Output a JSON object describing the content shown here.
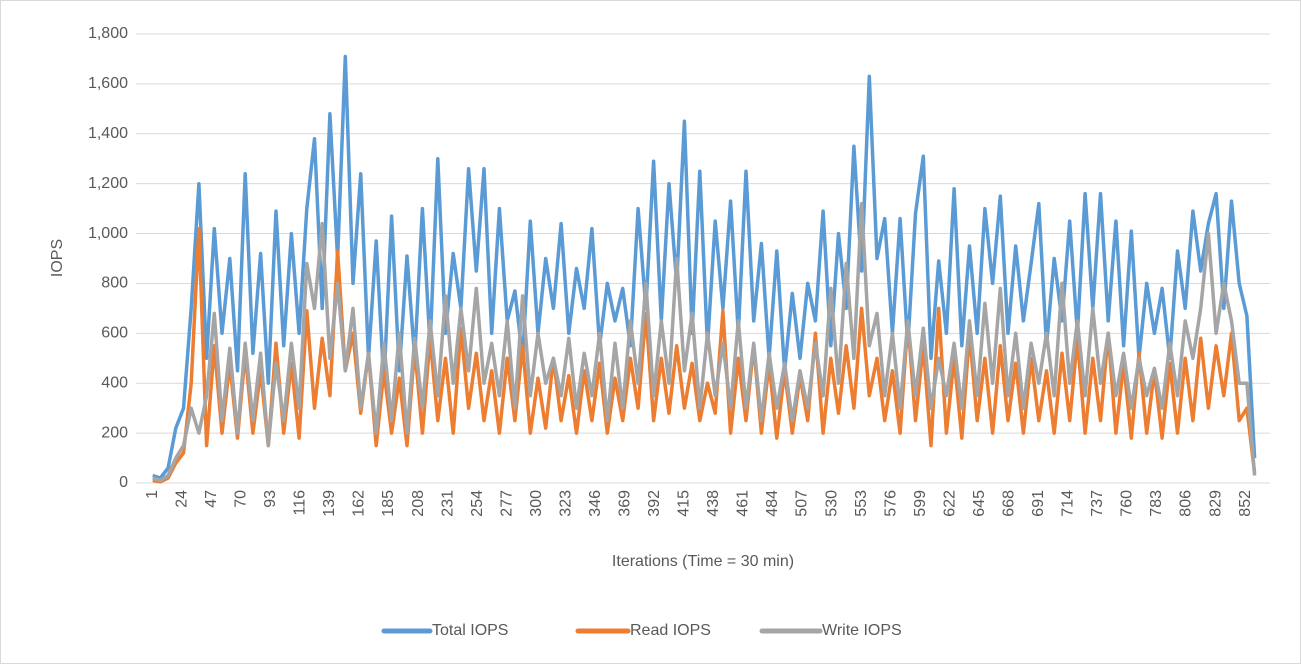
{
  "chart_data": {
    "type": "line",
    "xlabel": "Iterations (Time = 30 min)",
    "ylabel": "IOPS",
    "x": [
      1,
      7,
      13,
      19,
      25,
      31,
      37,
      43,
      49,
      55,
      61,
      67,
      73,
      79,
      85,
      91,
      97,
      103,
      109,
      115,
      121,
      127,
      133,
      139,
      145,
      151,
      157,
      163,
      169,
      175,
      181,
      187,
      193,
      199,
      205,
      211,
      217,
      223,
      229,
      235,
      241,
      247,
      253,
      259,
      265,
      271,
      277,
      283,
      289,
      295,
      301,
      307,
      313,
      319,
      325,
      331,
      337,
      343,
      349,
      355,
      361,
      367,
      373,
      379,
      385,
      391,
      397,
      403,
      409,
      415,
      421,
      427,
      433,
      439,
      445,
      451,
      457,
      463,
      469,
      475,
      481,
      487,
      493,
      499,
      505,
      511,
      517,
      523,
      529,
      535,
      541,
      547,
      553,
      559,
      565,
      571,
      577,
      583,
      589,
      595,
      601,
      607,
      613,
      619,
      625,
      631,
      637,
      643,
      649,
      655,
      661,
      667,
      673,
      679,
      685,
      691,
      697,
      703,
      709,
      715,
      721,
      727,
      733,
      739,
      745,
      751,
      757,
      763,
      769,
      775,
      781,
      787,
      793,
      799,
      805,
      811,
      817,
      823,
      829,
      835,
      841,
      847,
      853,
      859
    ],
    "series": [
      {
        "name": "Total IOPS",
        "color": "#5b9bd5",
        "values": [
          30,
          20,
          60,
          220,
          300,
          700,
          1200,
          500,
          1020,
          600,
          900,
          450,
          1240,
          520,
          920,
          400,
          1090,
          550,
          1000,
          600,
          1100,
          1380,
          700,
          1480,
          900,
          1710,
          800,
          1240,
          500,
          970,
          400,
          1070,
          450,
          910,
          500,
          1100,
          550,
          1300,
          600,
          920,
          700,
          1260,
          850,
          1260,
          600,
          1100,
          650,
          770,
          500,
          1050,
          600,
          900,
          700,
          1040,
          600,
          860,
          700,
          1020,
          550,
          800,
          650,
          780,
          550,
          1100,
          700,
          1290,
          650,
          1200,
          800,
          1450,
          600,
          1250,
          550,
          1050,
          700,
          1130,
          600,
          1250,
          650,
          960,
          500,
          930,
          450,
          760,
          500,
          800,
          650,
          1090,
          550,
          1000,
          700,
          1350,
          850,
          1630,
          900,
          1060,
          600,
          1060,
          550,
          1080,
          1310,
          500,
          890,
          600,
          1180,
          550,
          950,
          600,
          1100,
          800,
          1150,
          600,
          950,
          650,
          880,
          1120,
          550,
          900,
          650,
          1050,
          600,
          1160,
          700,
          1160,
          650,
          1050,
          550,
          1010,
          500,
          800,
          600,
          780,
          500,
          930,
          700,
          1090,
          850,
          1040,
          1160,
          700,
          1130,
          800,
          670,
          100
        ]
      },
      {
        "name": "Read IOPS",
        "color": "#ed7d31",
        "values": [
          10,
          5,
          20,
          80,
          120,
          400,
          1020,
          150,
          550,
          200,
          480,
          180,
          520,
          200,
          450,
          150,
          560,
          200,
          480,
          180,
          690,
          300,
          580,
          350,
          930,
          450,
          600,
          280,
          520,
          150,
          450,
          200,
          420,
          150,
          540,
          200,
          580,
          250,
          500,
          200,
          620,
          300,
          520,
          250,
          450,
          200,
          500,
          250,
          550,
          200,
          420,
          220,
          500,
          250,
          430,
          200,
          450,
          250,
          480,
          200,
          420,
          250,
          500,
          300,
          680,
          250,
          500,
          280,
          550,
          300,
          480,
          250,
          400,
          280,
          690,
          200,
          500,
          250,
          550,
          200,
          480,
          180,
          450,
          200,
          430,
          250,
          600,
          200,
          500,
          280,
          550,
          300,
          700,
          350,
          500,
          250,
          450,
          200,
          650,
          250,
          550,
          150,
          700,
          200,
          500,
          180,
          600,
          250,
          500,
          200,
          550,
          250,
          480,
          200,
          500,
          250,
          450,
          200,
          520,
          250,
          580,
          200,
          500,
          250,
          600,
          200,
          480,
          180,
          520,
          200,
          450,
          180,
          480,
          200,
          500,
          250,
          580,
          300,
          550,
          350,
          600,
          250,
          300,
          40
        ]
      },
      {
        "name": "Write IOPS",
        "color": "#a5a5a5",
        "values": [
          20,
          10,
          30,
          100,
          150,
          300,
          200,
          350,
          680,
          250,
          540,
          200,
          560,
          250,
          520,
          150,
          480,
          250,
          560,
          300,
          880,
          700,
          1040,
          500,
          800,
          450,
          700,
          300,
          520,
          200,
          560,
          250,
          600,
          200,
          580,
          300,
          650,
          350,
          750,
          400,
          700,
          450,
          780,
          400,
          560,
          350,
          650,
          300,
          750,
          350,
          600,
          400,
          500,
          350,
          580,
          300,
          520,
          350,
          600,
          250,
          560,
          300,
          650,
          400,
          800,
          350,
          650,
          400,
          900,
          450,
          680,
          300,
          600,
          350,
          560,
          300,
          650,
          300,
          560,
          250,
          520,
          300,
          480,
          250,
          450,
          300,
          560,
          350,
          780,
          400,
          880,
          500,
          1120,
          550,
          680,
          350,
          600,
          300,
          650,
          350,
          620,
          300,
          500,
          350,
          560,
          300,
          650,
          350,
          720,
          400,
          780,
          350,
          600,
          300,
          560,
          400,
          600,
          350,
          800,
          400,
          650,
          350,
          700,
          400,
          600,
          350,
          520,
          300,
          500,
          350,
          460,
          300,
          560,
          350,
          650,
          500,
          700,
          1000,
          600,
          800,
          650,
          400,
          400,
          30
        ]
      }
    ],
    "xlim": [
      -12,
      871
    ],
    "xticks": [
      1,
      24,
      47,
      70,
      93,
      116,
      139,
      162,
      185,
      208,
      231,
      254,
      277,
      300,
      323,
      346,
      369,
      392,
      415,
      438,
      461,
      484,
      507,
      530,
      553,
      576,
      599,
      622,
      645,
      668,
      691,
      714,
      737,
      760,
      783,
      806,
      829,
      852
    ],
    "ylim": [
      0,
      1800
    ],
    "yticks": [
      0,
      200,
      400,
      600,
      800,
      {
        "value": 1000,
        "label": "1,000"
      },
      {
        "value": 1200,
        "label": "1,200"
      },
      {
        "value": 1400,
        "label": "1,400"
      },
      {
        "value": 1600,
        "label": "1,600"
      },
      {
        "value": 1800,
        "label": "1,800"
      }
    ],
    "grid": true,
    "legend": "bottom"
  }
}
